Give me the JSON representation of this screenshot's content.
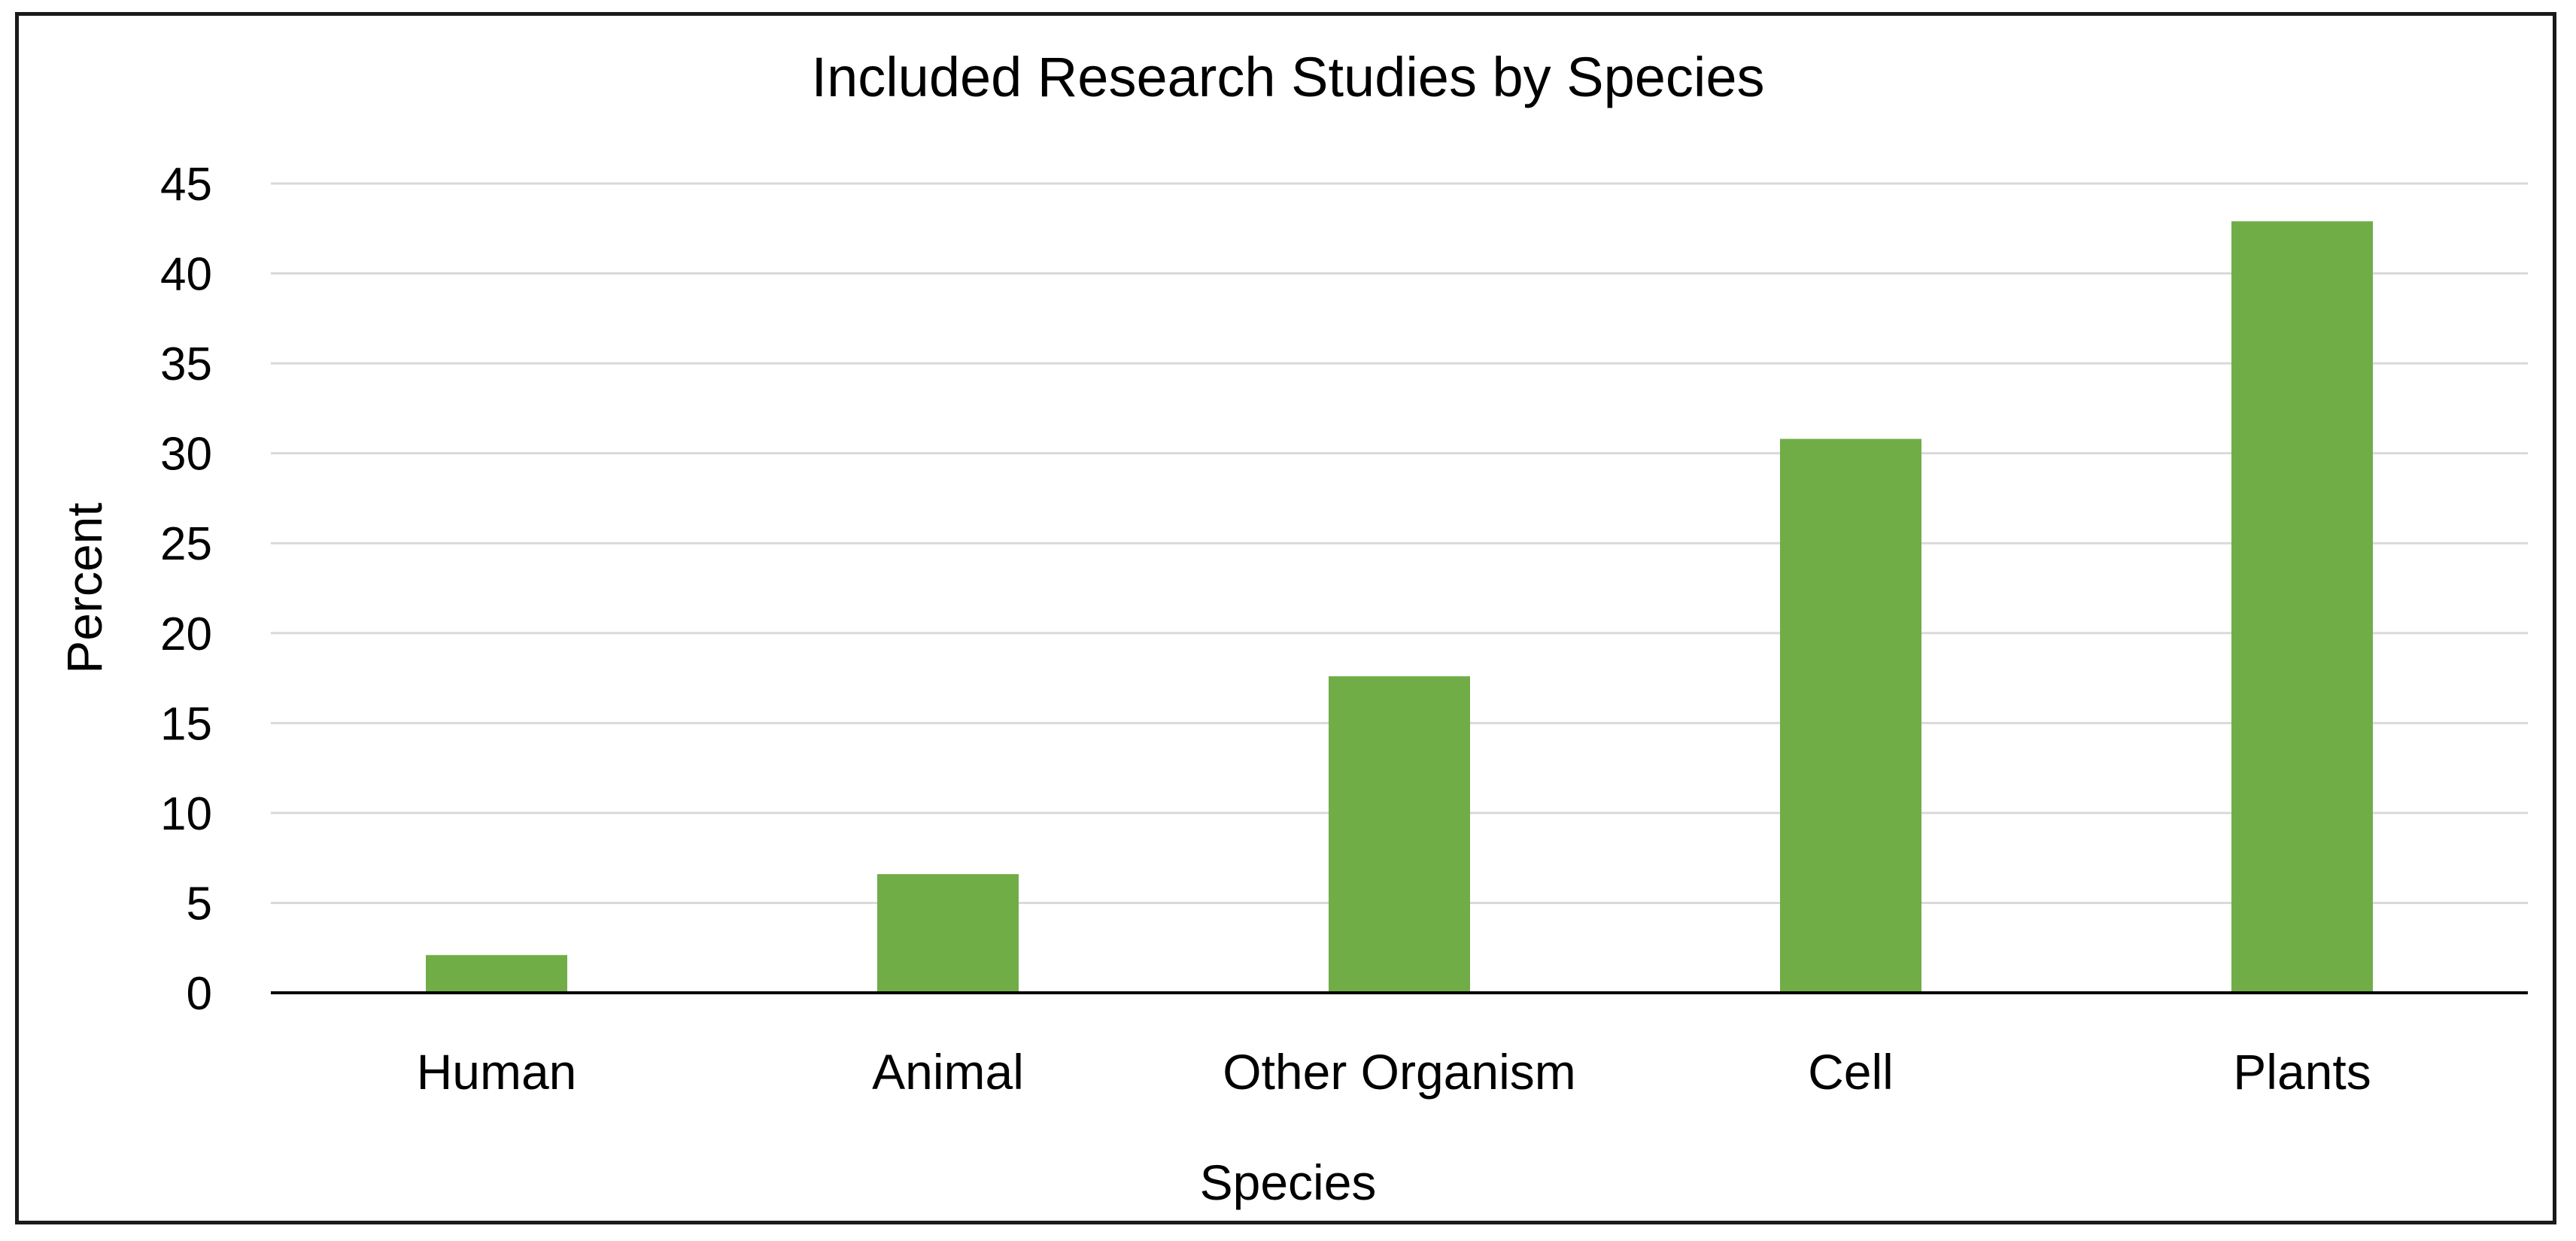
{
  "chart_data": {
    "type": "bar",
    "title": "Included Research Studies by Species",
    "xlabel": "Species",
    "ylabel": "Percent",
    "categories": [
      "Human",
      "Animal",
      "Other Organism",
      "Cell",
      "Plants"
    ],
    "values": [
      2.1,
      6.6,
      17.6,
      30.8,
      42.9
    ],
    "ylim": [
      0,
      45
    ],
    "yticks": [
      "0",
      "5",
      "10",
      "15",
      "20",
      "25",
      "30",
      "35",
      "40",
      "45"
    ],
    "grid": true,
    "legend": "none",
    "bar_color": "#70ad47"
  },
  "colors": {
    "bar": "#70ad47",
    "grid": "#d9d9d9",
    "axis": "#000000",
    "frame": "#1a1a1a"
  }
}
